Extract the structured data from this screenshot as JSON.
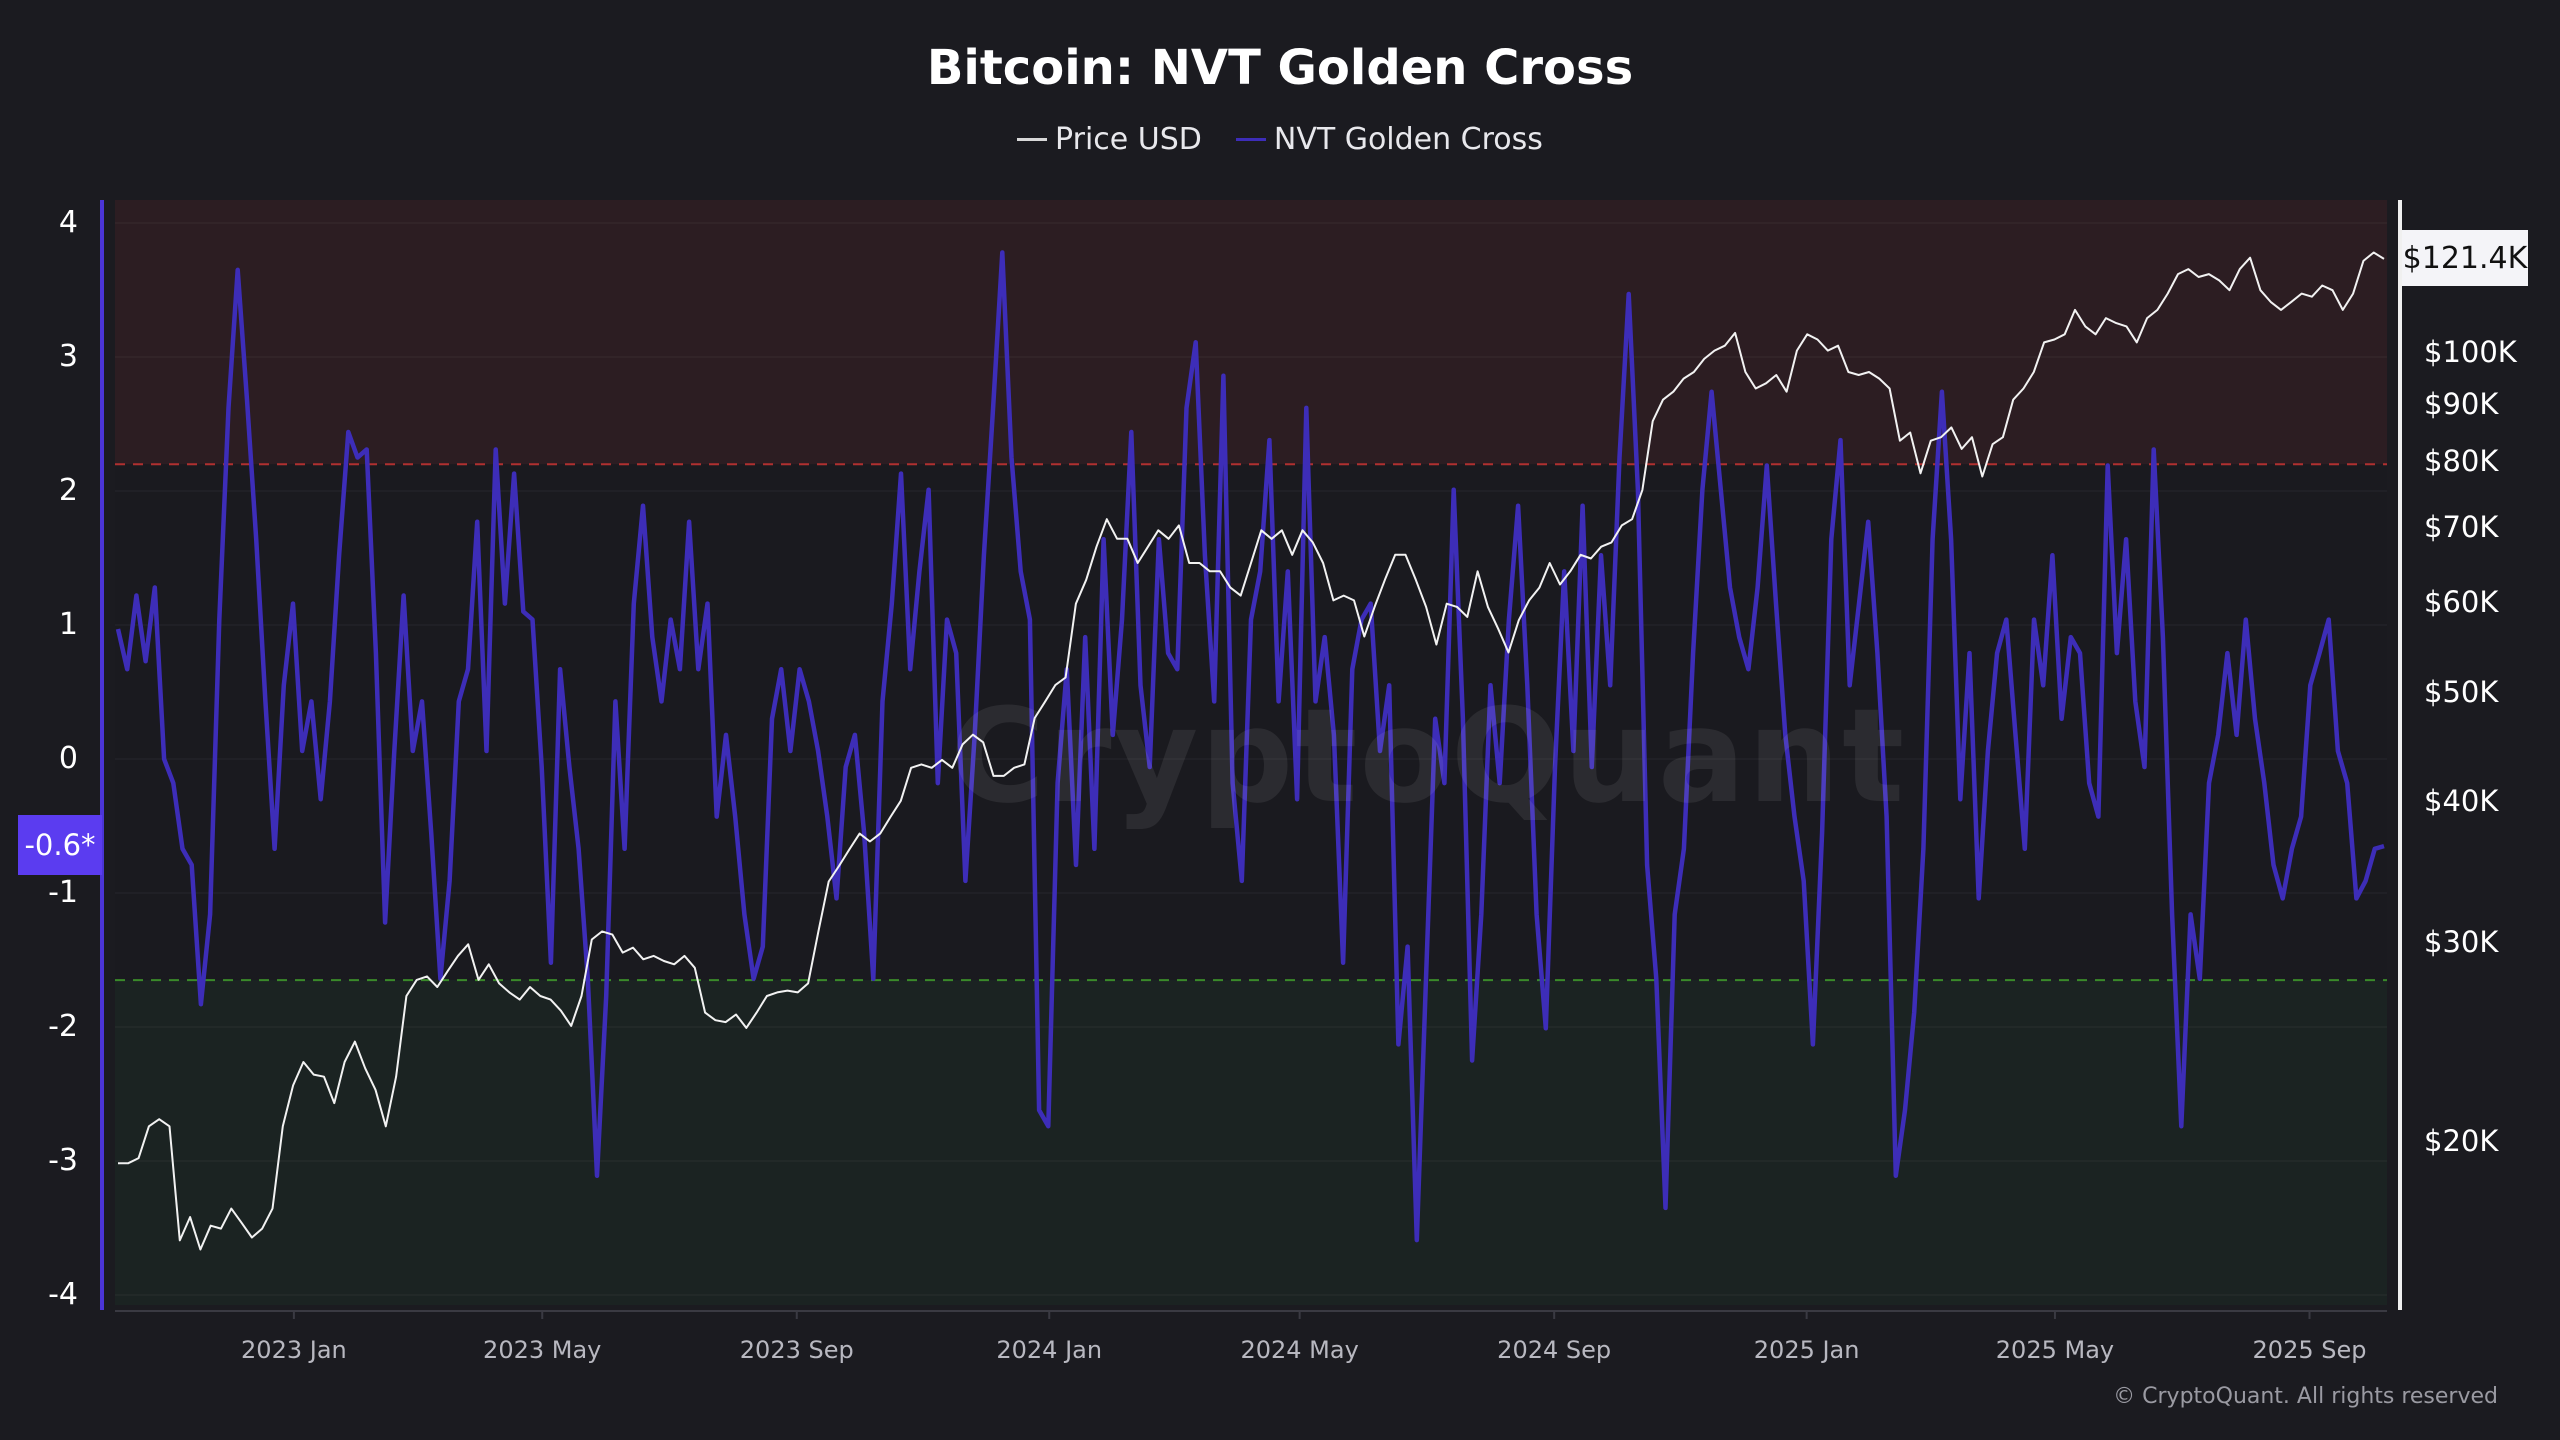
{
  "chart_data": {
    "type": "line",
    "title": "Bitcoin: NVT Golden Cross",
    "legend": [
      "Price USD",
      "NVT Golden Cross"
    ],
    "legend_placement": "top-center",
    "date_range": [
      "2022-10-08",
      "2025-10-07"
    ],
    "x_tick_labels": [
      "2023 Jan",
      "2023 May",
      "2023 Sep",
      "2024 Jan",
      "2024 May",
      "2024 Sep",
      "2025 Jan",
      "2025 May",
      "2025 Sep"
    ],
    "x_tick_dates": [
      "2023-01-01",
      "2023-05-01",
      "2023-09-01",
      "2024-01-01",
      "2024-05-01",
      "2024-09-01",
      "2025-01-01",
      "2025-05-01",
      "2025-09-01"
    ],
    "left_axis": {
      "ticks": [
        "4",
        "3",
        "2",
        "1",
        "0",
        "-1",
        "-2",
        "-3",
        "-4"
      ],
      "tick_values": [
        4,
        3,
        2,
        1,
        0,
        -1,
        -2,
        -3,
        -4
      ],
      "range": [
        -4.05,
        4.2
      ]
    },
    "right_axis": {
      "scale": "log",
      "ticks": [
        "$100K",
        "$90K",
        "$80K",
        "$70K",
        "$60K",
        "$50K",
        "$40K",
        "$30K",
        "$20K"
      ],
      "tick_values": [
        100,
        90,
        80,
        70,
        60,
        50,
        40,
        30,
        20
      ],
      "unit": "thousand USD"
    },
    "thresholds": {
      "overheated": 2.2,
      "undervalued": -1.65
    },
    "current_nvt_label": "-0.6*",
    "current_price_label": "$121.4K",
    "series": [
      {
        "name": "Price USD",
        "axis": "right",
        "color": "#f2f2f2",
        "unit": "thousand USD",
        "values": [
          19.2,
          19.2,
          19.4,
          20.7,
          21.0,
          20.7,
          16.4,
          17.2,
          16.1,
          16.9,
          16.8,
          17.5,
          17.0,
          16.5,
          16.8,
          17.5,
          20.7,
          22.5,
          23.6,
          23.0,
          22.9,
          21.7,
          23.6,
          24.6,
          23.3,
          22.3,
          20.7,
          22.9,
          27.0,
          27.9,
          28.1,
          27.5,
          28.4,
          29.3,
          30.0,
          27.9,
          28.8,
          27.7,
          27.2,
          26.8,
          27.5,
          27.0,
          26.8,
          26.2,
          25.4,
          27.0,
          30.3,
          30.8,
          30.6,
          29.5,
          29.8,
          29.1,
          29.3,
          29.0,
          28.8,
          29.3,
          28.6,
          26.1,
          25.7,
          25.6,
          26.0,
          25.3,
          26.1,
          27.0,
          27.2,
          27.3,
          27.2,
          27.7,
          30.8,
          34.1,
          35.2,
          36.4,
          37.6,
          37.0,
          37.6,
          38.9,
          40.2,
          43.0,
          43.3,
          43.0,
          43.7,
          43.0,
          45.1,
          46.0,
          45.3,
          42.3,
          42.3,
          43.0,
          43.3,
          47.6,
          49.2,
          50.9,
          51.7,
          60.1,
          63.1,
          67.5,
          71.4,
          68.6,
          68.6,
          65.3,
          67.5,
          69.8,
          68.6,
          70.5,
          65.3,
          65.3,
          64.2,
          64.2,
          62.1,
          61.1,
          65.3,
          69.8,
          68.6,
          69.8,
          66.4,
          69.8,
          68.1,
          65.3,
          60.5,
          61.1,
          60.5,
          56.2,
          59.7,
          63.1,
          66.4,
          66.4,
          63.1,
          59.7,
          55.3,
          60.1,
          59.7,
          58.5,
          64.2,
          59.7,
          57.1,
          54.4,
          58.1,
          60.5,
          62.1,
          65.3,
          62.5,
          64.2,
          66.4,
          65.9,
          67.5,
          68.1,
          70.5,
          71.4,
          75.8,
          87.2,
          91.1,
          92.6,
          95.1,
          96.4,
          99.0,
          100.7,
          101.7,
          104.4,
          96.4,
          93.2,
          94.2,
          95.8,
          92.6,
          100.7,
          104.1,
          103.0,
          100.7,
          101.7,
          96.4,
          95.8,
          96.4,
          95.1,
          93.2,
          83.8,
          85.2,
          78.4,
          83.8,
          84.4,
          86.1,
          82.4,
          84.4,
          77.9,
          83.2,
          84.4,
          91.1,
          93.2,
          96.4,
          102.4,
          103.0,
          104.1,
          109.4,
          105.8,
          104.1,
          107.6,
          106.5,
          105.8,
          102.4,
          107.6,
          109.4,
          113.1,
          117.7,
          118.9,
          117.0,
          117.7,
          116.2,
          113.9,
          118.9,
          121.7,
          113.9,
          111.2,
          109.4,
          111.2,
          113.1,
          112.4,
          115.0,
          113.9,
          109.4,
          113.1,
          120.9,
          123.0,
          121.4
        ]
      },
      {
        "name": "NVT Golden Cross",
        "axis": "left",
        "color": "#3d2db8",
        "values": [
          0.97,
          0.67,
          1.22,
          0.73,
          1.28,
          0.0,
          -0.18,
          -0.67,
          -0.79,
          -1.83,
          -1.16,
          1.04,
          2.62,
          3.65,
          2.68,
          1.64,
          0.43,
          -0.67,
          0.55,
          1.16,
          0.06,
          0.43,
          -0.3,
          0.43,
          1.52,
          2.44,
          2.25,
          2.31,
          0.79,
          -1.22,
          0.06,
          1.22,
          0.06,
          0.43,
          -0.55,
          -1.64,
          -0.91,
          0.43,
          0.67,
          1.77,
          0.06,
          2.31,
          1.16,
          2.13,
          1.1,
          1.04,
          -0.06,
          -1.52,
          0.67,
          -0.06,
          -0.67,
          -1.64,
          -3.11,
          -1.77,
          0.43,
          -0.67,
          1.16,
          1.89,
          0.91,
          0.43,
          1.04,
          0.67,
          1.77,
          0.67,
          1.16,
          -0.43,
          0.18,
          -0.43,
          -1.16,
          -1.64,
          -1.4,
          0.3,
          0.67,
          0.06,
          0.67,
          0.43,
          0.06,
          -0.43,
          -1.04,
          -0.06,
          0.18,
          -0.55,
          -1.64,
          0.43,
          1.16,
          2.13,
          0.67,
          1.4,
          2.01,
          -0.18,
          1.04,
          0.79,
          -0.91,
          0.18,
          1.52,
          2.62,
          3.78,
          2.25,
          1.4,
          1.04,
          -2.62,
          -2.74,
          -0.18,
          0.67,
          -0.79,
          0.91,
          -0.67,
          1.64,
          0.18,
          1.04,
          2.44,
          0.55,
          -0.06,
          1.64,
          0.79,
          0.67,
          2.62,
          3.11,
          1.52,
          0.43,
          2.86,
          -0.18,
          -0.91,
          1.04,
          1.4,
          2.38,
          0.43,
          1.4,
          -0.3,
          2.62,
          0.43,
          0.91,
          0.18,
          -1.52,
          0.67,
          1.04,
          1.16,
          0.06,
          0.55,
          -2.13,
          -1.4,
          -3.59,
          -1.64,
          0.3,
          -0.18,
          2.01,
          0.3,
          -2.25,
          -1.16,
          0.55,
          -0.18,
          1.04,
          1.89,
          0.55,
          -1.16,
          -2.01,
          -0.06,
          1.4,
          0.06,
          1.89,
          -0.06,
          1.52,
          0.55,
          2.25,
          3.47,
          2.01,
          -0.79,
          -1.64,
          -3.35,
          -1.16,
          -0.67,
          0.79,
          2.01,
          2.74,
          2.01,
          1.28,
          0.91,
          0.67,
          1.28,
          2.19,
          1.16,
          0.18,
          -0.43,
          -0.91,
          -2.13,
          -0.55,
          1.64,
          2.38,
          0.55,
          1.16,
          1.77,
          0.79,
          -0.43,
          -3.11,
          -2.62,
          -1.89,
          -0.67,
          1.64,
          2.74,
          1.64,
          -0.3,
          0.79,
          -1.04,
          0.06,
          0.79,
          1.04,
          0.18,
          -0.67,
          1.04,
          0.55,
          1.52,
          0.3,
          0.91,
          0.79,
          -0.18,
          -0.43,
          2.19,
          0.79,
          1.64,
          0.43,
          -0.06,
          2.31,
          0.91,
          -1.16,
          -2.74,
          -1.16,
          -1.64,
          -0.18,
          0.18,
          0.79,
          0.18,
          1.04,
          0.3,
          -0.18,
          -0.79,
          -1.04,
          -0.67,
          -0.43,
          0.55,
          0.79,
          1.04,
          0.06,
          -0.18,
          -1.04,
          -0.91,
          -0.67,
          -0.65
        ]
      }
    ],
    "watermark": "CryptoQuant",
    "copyright": "© CryptoQuant. All rights reserved",
    "grid": true
  },
  "colors": {
    "background": "#1b1b20",
    "overheated_zone": "#2c1d22",
    "undervalued_zone": "#1b2322",
    "red_line": "#b03030",
    "green_line": "#3a8a2a",
    "nvt": "#3d2db8",
    "tag": "#5b3cf0"
  }
}
